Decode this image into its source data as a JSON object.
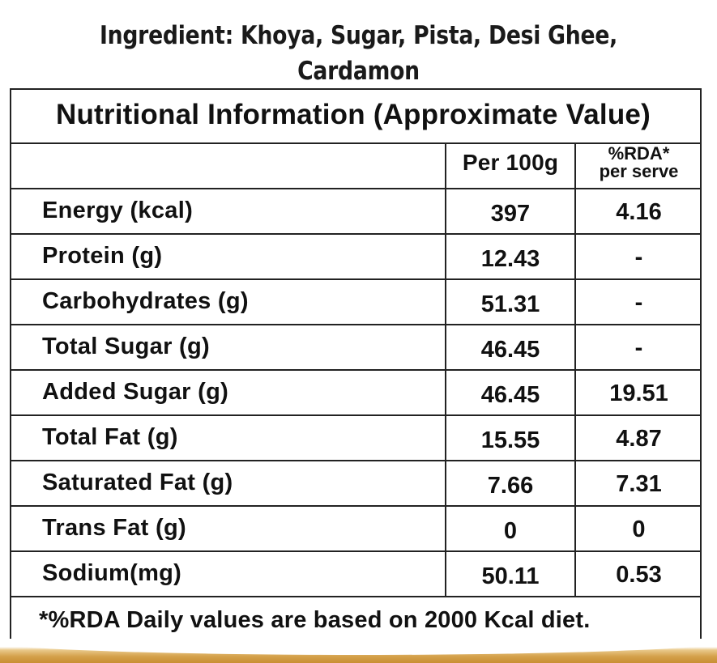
{
  "ingredients": {
    "line1": "Ingredient: Khoya, Sugar, Pista, Desi Ghee,",
    "line2": "Cardamon"
  },
  "table": {
    "title": "Nutritional Information (Approximate Value)",
    "col_per": "Per 100g",
    "col_rda_line1": "%RDA*",
    "col_rda_line2": "per serve",
    "rows": [
      {
        "name": "Energy (kcal)",
        "per": "397",
        "rda": "4.16"
      },
      {
        "name": "Protein (g)",
        "per": "12.43",
        "rda": "-"
      },
      {
        "name": "Carbohydrates (g)",
        "per": "51.31",
        "rda": "-"
      },
      {
        "name": "Total Sugar (g)",
        "per": "46.45",
        "rda": "-"
      },
      {
        "name": "Added Sugar (g)",
        "per": "46.45",
        "rda": "19.51"
      },
      {
        "name": "Total Fat (g)",
        "per": "15.55",
        "rda": "4.87"
      },
      {
        "name": "Saturated Fat (g)",
        "per": "7.66",
        "rda": "7.31"
      },
      {
        "name": "Trans Fat (g)",
        "per": "0",
        "rda": "0"
      },
      {
        "name": "Sodium(mg)",
        "per": "50.11",
        "rda": "0.53"
      }
    ],
    "footnote": "*%RDA Daily values are based on 2000 Kcal diet."
  },
  "colors": {
    "border": "#222222",
    "gold_band": "#d4a04a"
  }
}
